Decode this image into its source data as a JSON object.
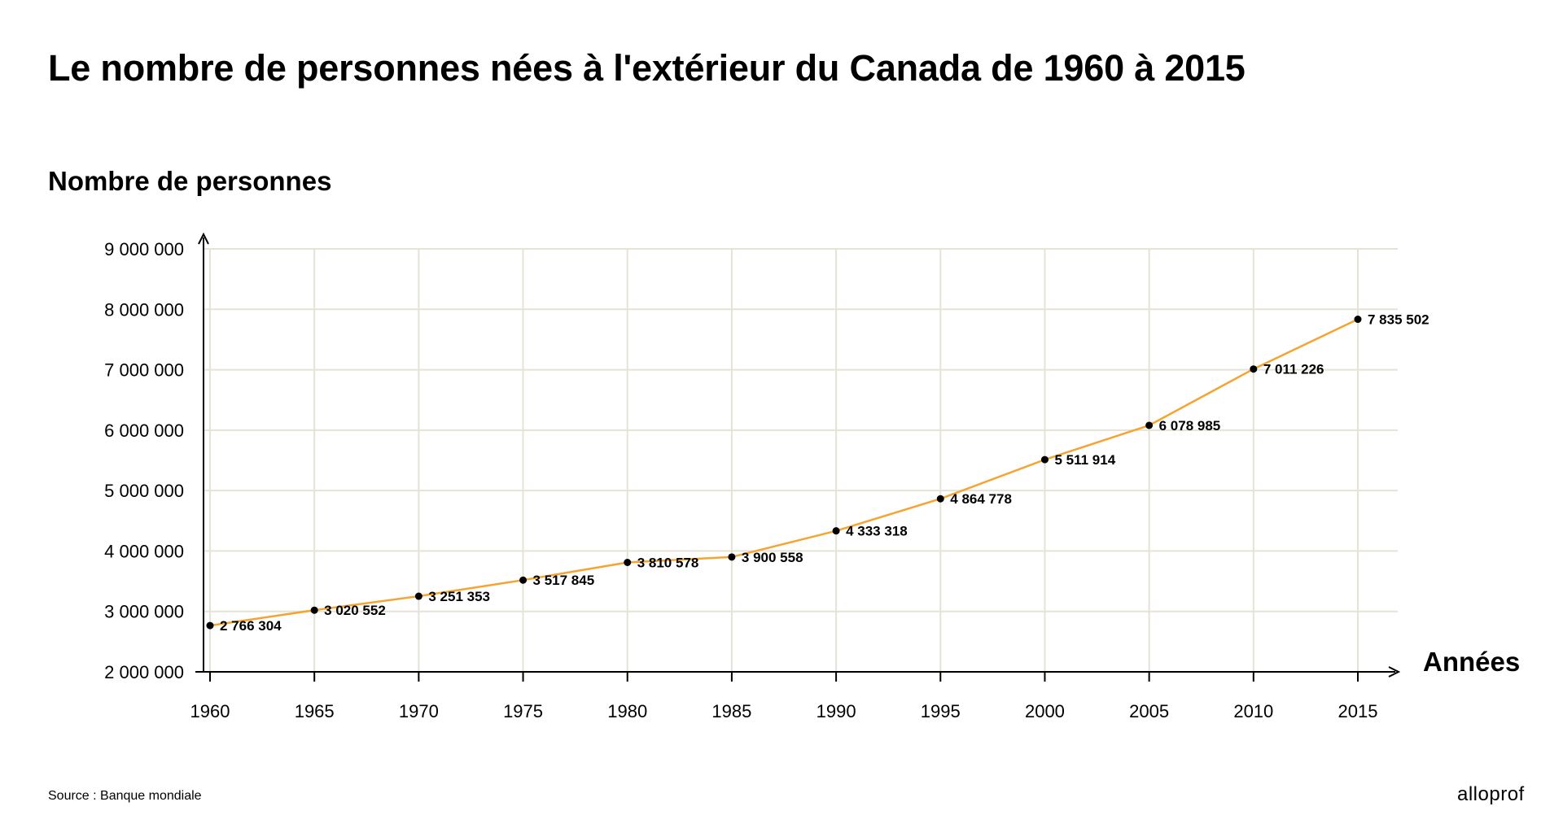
{
  "chart_data": {
    "type": "line",
    "title": "Le nombre de personnes nées à l'extérieur du Canada de 1960 à 2015",
    "ylabel": "Nombre de personnes",
    "xlabel": "Années",
    "x": [
      1960,
      1965,
      1970,
      1975,
      1980,
      1985,
      1990,
      1995,
      2000,
      2005,
      2010,
      2015
    ],
    "series": [
      {
        "values": [
          2766304,
          3020552,
          3251353,
          3517845,
          3810578,
          3900558,
          4333318,
          4864778,
          5511914,
          6078985,
          7011226,
          7835502
        ]
      }
    ],
    "data_labels": [
      "2 766 304",
      "3 020 552",
      "3 251 353",
      "3 517 845",
      "3 810 578",
      "3 900 558",
      "4 333 318",
      "4 864 778",
      "5 511 914",
      "6 078 985",
      "7 011 226",
      "7 835 502"
    ],
    "x_tick_labels": [
      "1960",
      "1965",
      "1970",
      "1975",
      "1980",
      "1985",
      "1990",
      "1995",
      "2000",
      "2005",
      "2010",
      "2015"
    ],
    "y_ticks": [
      2000000,
      3000000,
      4000000,
      5000000,
      6000000,
      7000000,
      8000000,
      9000000
    ],
    "y_tick_labels": [
      "2 000 000",
      "3 000 000",
      "4 000 000",
      "5 000 000",
      "6 000 000",
      "7 000 000",
      "8 000 000",
      "9 000 000"
    ],
    "ylim": [
      2000000,
      9000000
    ],
    "xlim": [
      1960,
      2015
    ],
    "grid": true,
    "legend": "none",
    "colors": {
      "line": "#f5a431",
      "points": "#000000",
      "grid": "#e5e2d6",
      "axis": "#000000"
    }
  },
  "footer": {
    "source": "Source : Banque mondiale",
    "brand": "alloprof"
  }
}
